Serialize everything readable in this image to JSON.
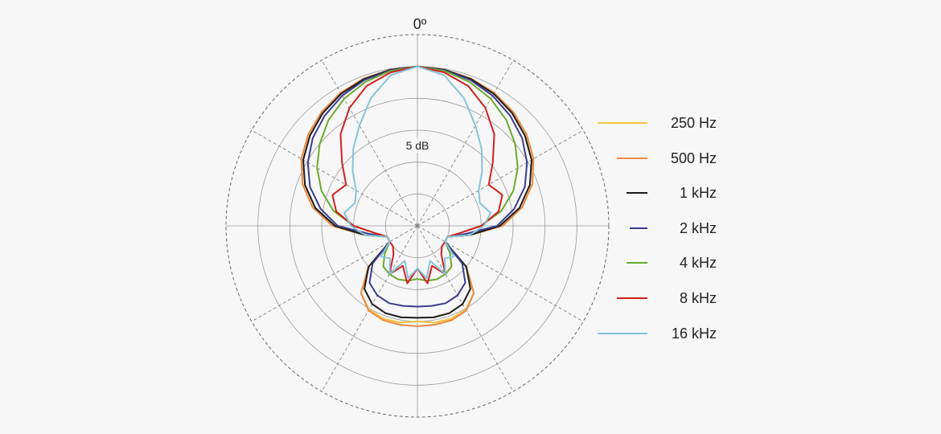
{
  "chart_data": {
    "type": "polar",
    "title": "",
    "angle_label": "0º",
    "radial_label": "5 dB",
    "rings": 6,
    "spokes_deg": [
      0,
      30,
      60,
      90,
      120,
      150,
      180,
      210,
      240,
      270,
      300,
      330
    ],
    "legend_position": "right",
    "series": [
      {
        "name": "250 Hz",
        "color": "#f5c342",
        "r_db": [
          0,
          -0.2,
          -0.5,
          -1.1,
          -2,
          -3.2,
          -4.8,
          -7,
          -10,
          -14,
          -20,
          -24,
          -24,
          -18,
          -13.5,
          -11.8,
          -11.4,
          -11.5,
          -12
        ]
      },
      {
        "name": "500 Hz",
        "color": "#ec8a43",
        "r_db": [
          0,
          -0.2,
          -0.5,
          -1.1,
          -2,
          -3.2,
          -4.8,
          -7,
          -10,
          -14,
          -20,
          -24,
          -24,
          -18,
          -13.5,
          -11.6,
          -11.1,
          -11.1,
          -11.1
        ]
      },
      {
        "name": "1 kHz",
        "color": "#1c1c1c",
        "r_db": [
          0,
          -0.2,
          -0.6,
          -1.3,
          -2.3,
          -3.6,
          -5.2,
          -7.5,
          -10.5,
          -14.5,
          -20,
          -24,
          -24,
          -18,
          -14.5,
          -13,
          -12.5,
          -12.5,
          -12.7
        ]
      },
      {
        "name": "2 kHz",
        "color": "#3b3d8f",
        "r_db": [
          0,
          -0.3,
          -0.8,
          -1.7,
          -2.9,
          -4.3,
          -6.2,
          -8.5,
          -11.5,
          -15,
          -21,
          -24,
          -24,
          -19,
          -16,
          -14.9,
          -14.5,
          -14.7,
          -14.8
        ]
      },
      {
        "name": "4 kHz",
        "color": "#6aaa2c",
        "r_db": [
          0,
          -0.4,
          -1.2,
          -2.4,
          -4,
          -6,
          -8.2,
          -10.8,
          -14,
          -18,
          -22,
          -24,
          -24,
          -22,
          -20,
          -19.5,
          -19.3,
          -19.5,
          -20
        ]
      },
      {
        "name": "8 kHz",
        "color": "#d42020",
        "r_db": [
          0,
          -0.7,
          -2,
          -4.4,
          -7.5,
          -11.5,
          -14.5,
          -13,
          -14.5,
          -18,
          -22,
          -24,
          -24,
          -24,
          -23,
          -19.5,
          -22,
          -19,
          -22
        ]
      },
      {
        "name": "16 kHz",
        "color": "#85c4da",
        "r_db": [
          0,
          -1.2,
          -4.4,
          -8.2,
          -11.2,
          -14.1,
          -16.7,
          -17.5,
          -16,
          -17.5,
          -20,
          -24,
          -24,
          -21,
          -22,
          -19.5,
          -23,
          -20,
          -22
        ]
      }
    ]
  }
}
